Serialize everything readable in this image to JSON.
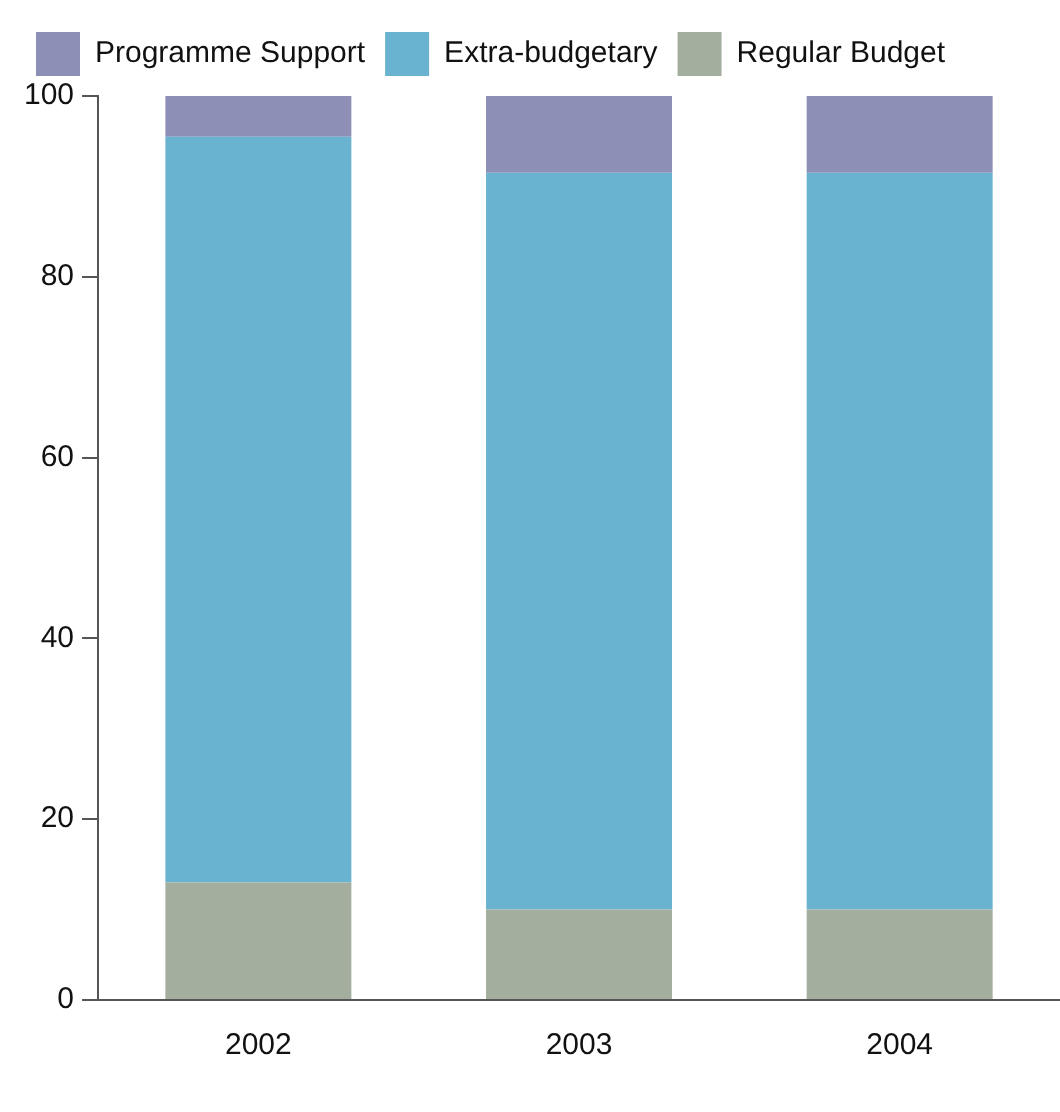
{
  "chart_data": {
    "type": "bar",
    "stacked": true,
    "categories": [
      "2002",
      "2003",
      "2004"
    ],
    "series": [
      {
        "name": "Regular Budget",
        "color": "#a3ae9e",
        "values": [
          13,
          10,
          10
        ]
      },
      {
        "name": "Extra-budgetary",
        "color": "#69b3d1",
        "values": [
          82.5,
          81.5,
          81.5
        ]
      },
      {
        "name": "Programme Support",
        "color": "#8e8fb6",
        "values": [
          4.5,
          8.5,
          8.5
        ]
      }
    ],
    "ylim": [
      0,
      100
    ],
    "yticks": [
      0,
      20,
      40,
      60,
      80,
      100
    ],
    "grid": false,
    "legend": "top left"
  }
}
